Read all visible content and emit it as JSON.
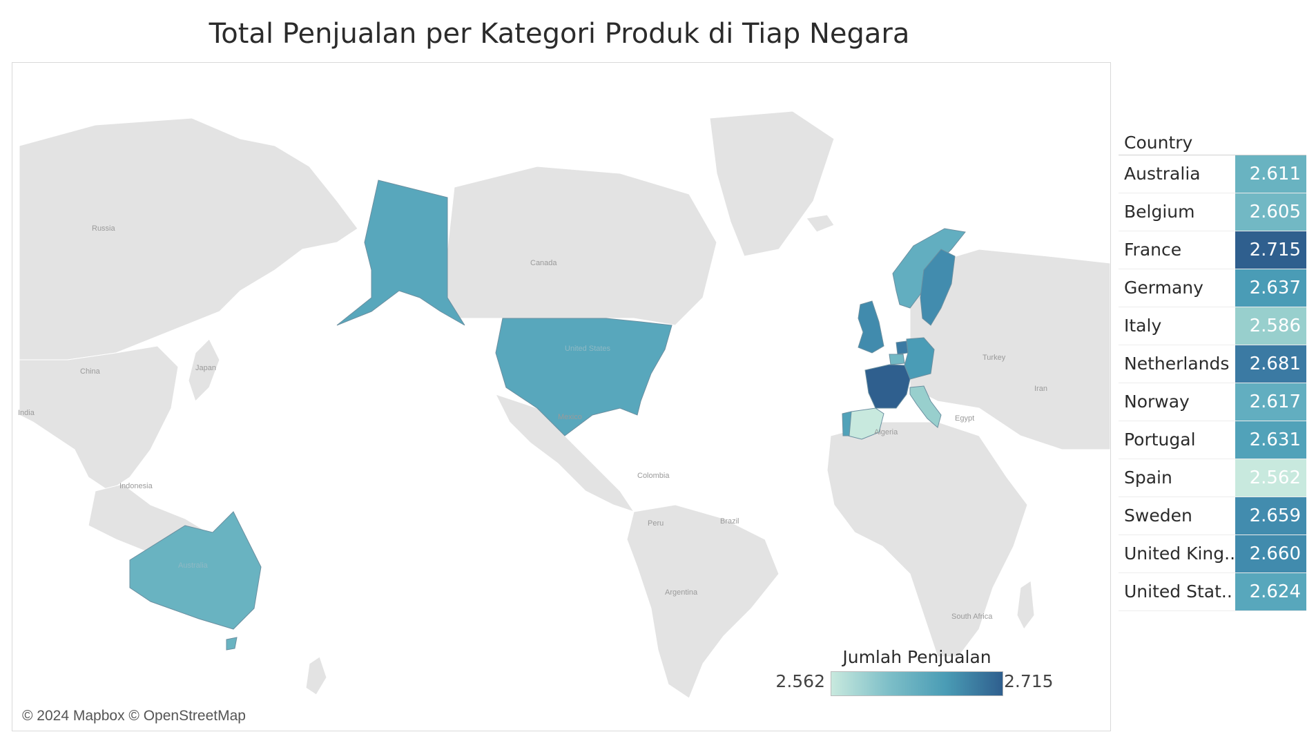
{
  "title": "Total Penjualan per Kategori Produk di Tiap Negara",
  "attribution": "© 2024 Mapbox © OpenStreetMap",
  "legend": {
    "title": "Jumlah Penjualan",
    "min_label": "2.562",
    "max_label": "2.715",
    "min_value": 2562,
    "max_value": 2715,
    "color_low": "#c8e9de",
    "color_high": "#2f5f8e"
  },
  "map_labels": [
    "Russia",
    "Canada",
    "China",
    "Japan",
    "India",
    "Indonesia",
    "Australia",
    "United States",
    "Mexico",
    "Colombia",
    "Peru",
    "Brazil",
    "Argentina",
    "Algeria",
    "Egypt",
    "Turkey",
    "Iran",
    "South Africa"
  ],
  "table": {
    "header": "Country",
    "rows": [
      {
        "country": "Australia",
        "value": "2.611",
        "amount": 2611,
        "color": "#69b3c1"
      },
      {
        "country": "Belgium",
        "value": "2.605",
        "amount": 2605,
        "color": "#72b8c4"
      },
      {
        "country": "France",
        "value": "2.715",
        "amount": 2715,
        "color": "#2f5f8e"
      },
      {
        "country": "Germany",
        "value": "2.637",
        "amount": 2637,
        "color": "#4a9cb6"
      },
      {
        "country": "Italy",
        "value": "2.586",
        "amount": 2586,
        "color": "#98cfcd"
      },
      {
        "country": "Netherlands",
        "value": "2.681",
        "amount": 2681,
        "color": "#3b7aa3"
      },
      {
        "country": "Norway",
        "value": "2.617",
        "amount": 2617,
        "color": "#62aec0"
      },
      {
        "country": "Portugal",
        "value": "2.631",
        "amount": 2631,
        "color": "#51a2b9"
      },
      {
        "country": "Spain",
        "value": "2.562",
        "amount": 2562,
        "color": "#c8e9de"
      },
      {
        "country": "Sweden",
        "value": "2.659",
        "amount": 2659,
        "color": "#428cae"
      },
      {
        "country": "United King..",
        "value": "2.660",
        "amount": 2660,
        "color": "#418bad"
      },
      {
        "country": "United Stat..",
        "value": "2.624",
        "amount": 2624,
        "color": "#58a7bc"
      }
    ]
  }
}
